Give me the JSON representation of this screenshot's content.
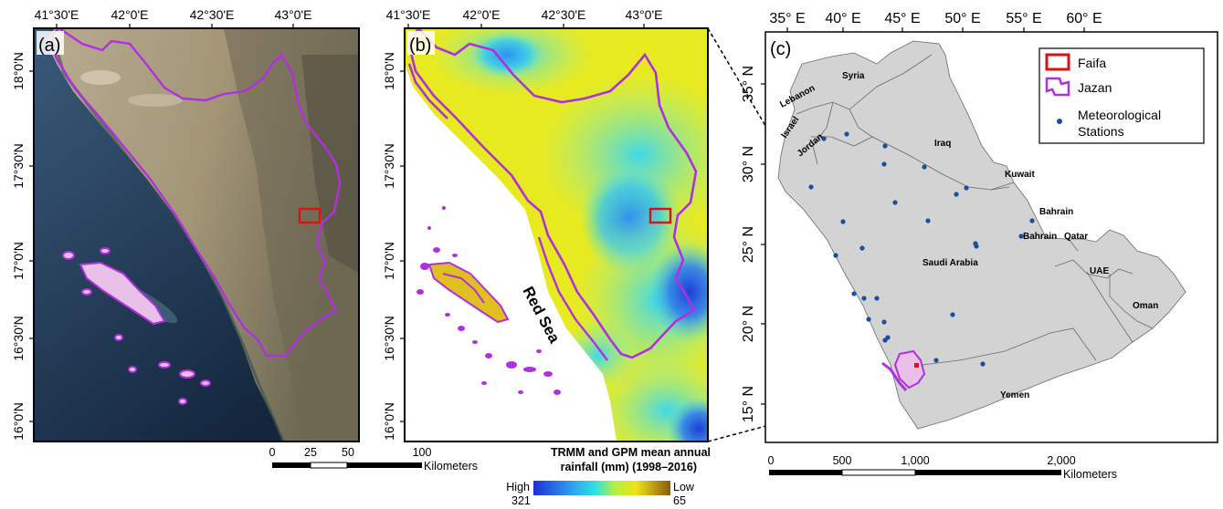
{
  "panel_a": {
    "label": "(a)",
    "top_ticks": [
      "41°30'E",
      "42°0'E",
      "42°30'E",
      "43°0'E"
    ],
    "left_ticks": [
      "18°0'N",
      "17°30'N",
      "17°0'N",
      "16°30'N",
      "16°0'N"
    ]
  },
  "panel_b": {
    "label": "(b)",
    "top_ticks": [
      "41°30'E",
      "42°0'E",
      "42°30'E",
      "43°0'E"
    ],
    "left_ticks": [
      "18°0'N",
      "17°30'N",
      "17°0'N",
      "16°30'N",
      "16°0'N"
    ],
    "sea_label": "Red Sea",
    "legend_title_line1": "TRMM and GPM mean annual",
    "legend_title_line2": "rainfall (mm) (1998–2016)",
    "legend_high_word": "High",
    "legend_high_value": "321",
    "legend_low_word": "Low",
    "legend_low_value": "65",
    "colors": {
      "high": "#1f2fd6",
      "mid": "#2fe0e0",
      "low": "#f0e21a",
      "lowest": "#8a5a10"
    }
  },
  "scale_ab": {
    "ticks": [
      "0",
      "25",
      "50",
      "100"
    ],
    "unit": "Kilometers"
  },
  "panel_c": {
    "label": "(c)",
    "top_ticks": [
      "35° E",
      "40° E",
      "45° E",
      "50° E",
      "55° E",
      "60° E"
    ],
    "left_ticks": [
      "35° N",
      "30° N",
      "25° N",
      "20° N",
      "15° N"
    ],
    "countries": [
      "Syria",
      "Lebanon",
      "Israel",
      "Jordan",
      "Iraq",
      "Kuwait",
      "Bahrain",
      "Bahrain",
      "Qatar",
      "Saudi Arabia",
      "UAE",
      "Oman",
      "Yemen"
    ],
    "legend": {
      "faifa": "Faifa",
      "jazan": "Jazan",
      "stations_line1": "Meteorological",
      "stations_line2": "Stations"
    },
    "scale_ticks": [
      "0",
      "500",
      "1,000",
      "2,000"
    ],
    "scale_unit": "Kilometers"
  },
  "colors": {
    "faifa": "#e01010",
    "jazan": "#b030e0",
    "stations": "#1a4fa0",
    "land": "#d3d3d3"
  }
}
